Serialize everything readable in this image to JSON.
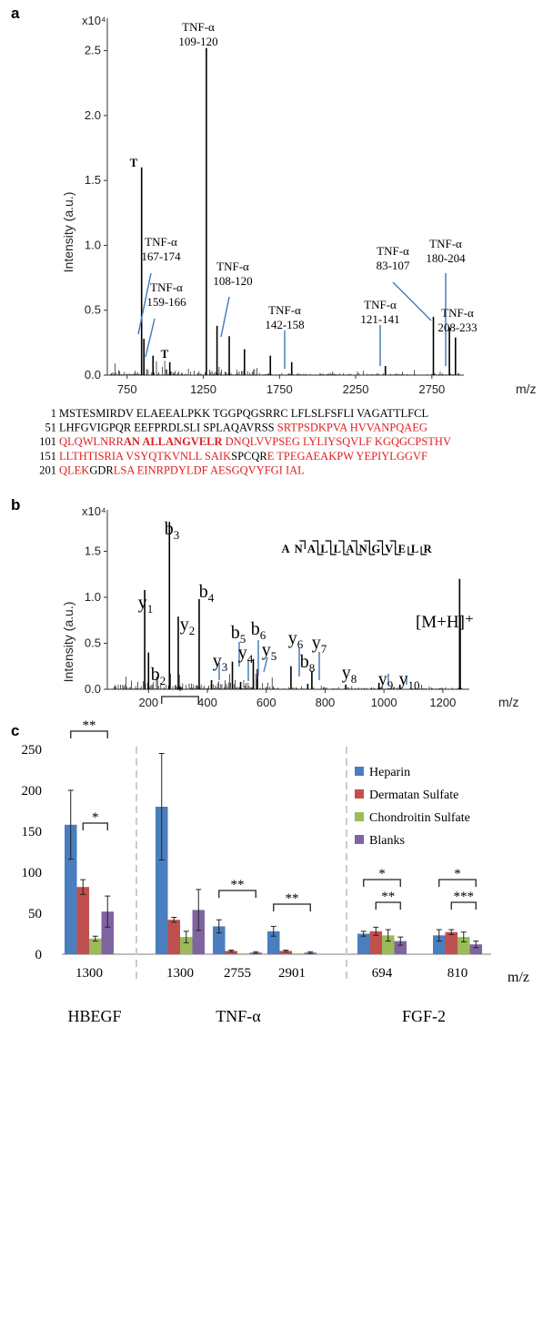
{
  "panels": {
    "a": "a",
    "b": "b",
    "c": "c"
  },
  "panel_a": {
    "ylabel": "Intensity (a.u.)",
    "exponent": "x10⁴",
    "xlabel": "m/z",
    "xticks": [
      "750",
      "1250",
      "1750",
      "2250",
      "2750"
    ],
    "yticks": [
      "0.0",
      "0.5",
      "1.0",
      "1.5",
      "2.0",
      "2.5"
    ],
    "annotations": [
      {
        "line1": "TNF-α",
        "line2": "109-120"
      },
      {
        "line1": "TNF-α",
        "line2": "167-174"
      },
      {
        "line1": "TNF-α",
        "line2": "159-166"
      },
      {
        "line1": "TNF-α",
        "line2": "108-120"
      },
      {
        "line1": "TNF-α",
        "line2": "142-158"
      },
      {
        "line1": "TNF-α",
        "line2": "121-141"
      },
      {
        "line1": "TNF-α",
        "line2": "83-107"
      },
      {
        "line1": "TNF-α",
        "line2": "180-204"
      },
      {
        "line1": "TNF-α",
        "line2": "208-233"
      }
    ],
    "trypsin_marks": [
      "T",
      "T"
    ]
  },
  "sequence": [
    {
      "num": "1",
      "segs": [
        {
          "t": "MSTESMIRDV ELAEEALPKK TGGPQGSRRC LFLSLFSFLI VAGATTLFCL",
          "c": "k"
        }
      ]
    },
    {
      "num": "51",
      "segs": [
        {
          "t": "LHFGVIGPQR EEFPRDLSLI SPLAQAVRSS ",
          "c": "k"
        },
        {
          "t": "SRTPSDKPVA HVVANPQAEG",
          "c": "r"
        }
      ]
    },
    {
      "num": "101",
      "segs": [
        {
          "t": "QLQWLNRR",
          "c": "r"
        },
        {
          "t": "AN ALLANGVELR",
          "c": "rb"
        },
        {
          "t": " DNQLVVPSEG LYLIYSQVLF KGQGCPSTHV",
          "c": "r"
        }
      ]
    },
    {
      "num": "151",
      "segs": [
        {
          "t": "LLTHTISRIA VSYQTKVNLL SAIK",
          "c": "r"
        },
        {
          "t": "SPCQR",
          "c": "k"
        },
        {
          "t": "E TPEGAEAKPW YEPIYLGGVF",
          "c": "r"
        }
      ]
    },
    {
      "num": "201",
      "segs": [
        {
          "t": "QLEK",
          "c": "r"
        },
        {
          "t": "GDR",
          "c": "k"
        },
        {
          "t": "LSA EINRPDYLDF AESGQVYFGI IAL",
          "c": "r"
        }
      ]
    }
  ],
  "panel_b": {
    "ylabel": "Intensity (a.u.)",
    "exponent": "x10⁴",
    "xlabel": "m/z",
    "xticks": [
      "200",
      "400",
      "600",
      "800",
      "1000",
      "1200"
    ],
    "yticks": [
      "0.0",
      "0.5",
      "1.0",
      "1.5"
    ],
    "peptide": "ANALLANGVELR",
    "precursor": "[M+H]⁺",
    "ions": [
      {
        "s": "y",
        "n": "1"
      },
      {
        "s": "b",
        "n": "2"
      },
      {
        "s": "b",
        "n": "3"
      },
      {
        "s": "y",
        "n": "2"
      },
      {
        "s": "b",
        "n": "4"
      },
      {
        "s": "y",
        "n": "3"
      },
      {
        "s": "b",
        "n": "5"
      },
      {
        "s": "y",
        "n": "4"
      },
      {
        "s": "b",
        "n": "6"
      },
      {
        "s": "y",
        "n": "5"
      },
      {
        "s": "y",
        "n": "6"
      },
      {
        "s": "y",
        "n": "7"
      },
      {
        "s": "b",
        "n": "8"
      },
      {
        "s": "y",
        "n": "8"
      },
      {
        "s": "y",
        "n": "9"
      },
      {
        "s": "y",
        "n": "10"
      }
    ]
  },
  "chart_data": [
    {
      "type": "line",
      "panel": "a",
      "xlabel": "m/z",
      "ylabel": "Intensity (a.u.)",
      "y_multiplier": "x10^4",
      "xlim": [
        620,
        2960
      ],
      "ylim": [
        0,
        2.75
      ],
      "peaks": [
        {
          "x": 845,
          "y": 1.6,
          "label": "T"
        },
        {
          "x": 860,
          "y": 0.28,
          "label": "TNF-α 167-174"
        },
        {
          "x": 920,
          "y": 0.15,
          "label": "TNF-α 159-166"
        },
        {
          "x": 1030,
          "y": 0.1,
          "label": "T"
        },
        {
          "x": 1270,
          "y": 2.52,
          "label": "TNF-α 109-120"
        },
        {
          "x": 1340,
          "y": 0.38
        },
        {
          "x": 1420,
          "y": 0.3,
          "label": "TNF-α 108-120"
        },
        {
          "x": 1520,
          "y": 0.2
        },
        {
          "x": 1690,
          "y": 0.15
        },
        {
          "x": 1830,
          "y": 0.1,
          "label": "TNF-α 142-158"
        },
        {
          "x": 2445,
          "y": 0.07,
          "label": "TNF-α 121-141"
        },
        {
          "x": 2760,
          "y": 0.45,
          "label": "TNF-α 83-107"
        },
        {
          "x": 2865,
          "y": 0.37,
          "label": "TNF-α 180-204"
        },
        {
          "x": 2905,
          "y": 0.29,
          "label": "TNF-α 208-233"
        }
      ]
    },
    {
      "type": "line",
      "panel": "b",
      "xlabel": "m/z",
      "ylabel": "Intensity (a.u.)",
      "y_multiplier": "x10^4",
      "xlim": [
        60,
        1290
      ],
      "ylim": [
        0,
        1.95
      ],
      "peaks": [
        {
          "x": 187,
          "y": 1.08,
          "label": "y1"
        },
        {
          "x": 200,
          "y": 0.4,
          "label": "b2"
        },
        {
          "x": 271,
          "y": 1.82,
          "label": "b3"
        },
        {
          "x": 301,
          "y": 0.79,
          "label": "y2"
        },
        {
          "x": 372,
          "y": 0.98,
          "label": "b4"
        },
        {
          "x": 414,
          "y": 0.1,
          "label": "y3"
        },
        {
          "x": 485,
          "y": 0.3,
          "label": "b5"
        },
        {
          "x": 513,
          "y": 0.08,
          "label": "y4"
        },
        {
          "x": 556,
          "y": 0.33,
          "label": "b6"
        },
        {
          "x": 570,
          "y": 0.22,
          "label": "y5"
        },
        {
          "x": 684,
          "y": 0.25,
          "label": "y6"
        },
        {
          "x": 741,
          "y": 0.06,
          "label": "b8"
        },
        {
          "x": 755,
          "y": 0.2,
          "label": "y7"
        },
        {
          "x": 870,
          "y": 0.05,
          "label": "y8"
        },
        {
          "x": 983,
          "y": 0.07,
          "label": "y9"
        },
        {
          "x": 1054,
          "y": 0.05,
          "label": "y10"
        },
        {
          "x": 1257,
          "y": 1.2,
          "label": "[M+H]+"
        }
      ]
    },
    {
      "type": "bar",
      "panel": "c",
      "xlabel": "m/z",
      "ylim": [
        0,
        250
      ],
      "yticks": [
        0,
        50,
        100,
        150,
        200,
        250
      ],
      "categories": [
        "1300",
        "1300",
        "2755",
        "2901",
        "694",
        "810"
      ],
      "groups": [
        {
          "label": "HBEGF",
          "categories": [
            0
          ]
        },
        {
          "label": "TNF-α",
          "categories": [
            1,
            2,
            3
          ]
        },
        {
          "label": "FGF-2",
          "categories": [
            4,
            5
          ]
        }
      ],
      "series": [
        {
          "name": "Heparin",
          "color": "#4a7ebf",
          "values": [
            158,
            180,
            34,
            28,
            25,
            23
          ],
          "errors": [
            42,
            65,
            8,
            6,
            3,
            7
          ]
        },
        {
          "name": "Dermatan Sulfate",
          "color": "#c0504d",
          "values": [
            82,
            42,
            4,
            4,
            28,
            27
          ],
          "errors": [
            9,
            3,
            1,
            1,
            5,
            3
          ]
        },
        {
          "name": "Chondroitin Sulfate",
          "color": "#9bbb59",
          "values": [
            19,
            21,
            1,
            1,
            23,
            21
          ],
          "errors": [
            3,
            7,
            0.5,
            0.5,
            7,
            6
          ]
        },
        {
          "name": "Blanks",
          "color": "#8064a2",
          "values": [
            52,
            54,
            2,
            2,
            16,
            12
          ],
          "errors": [
            19,
            25,
            1,
            1,
            5,
            4
          ]
        }
      ],
      "significance": [
        {
          "category": 0,
          "from": 0,
          "to": 3,
          "label": "**"
        },
        {
          "category": 0,
          "from": 1,
          "to": 3,
          "label": "*"
        },
        {
          "category": 1,
          "from": 0,
          "to": 3,
          "label": "*"
        },
        {
          "category": 2,
          "from": 0,
          "to": 3,
          "label": "**"
        },
        {
          "category": 3,
          "from": 0,
          "to": 3,
          "label": "**"
        },
        {
          "category": 4,
          "from": 0,
          "to": 3,
          "label": "*"
        },
        {
          "category": 4,
          "from": 1,
          "to": 3,
          "label": "**"
        },
        {
          "category": 5,
          "from": 0,
          "to": 3,
          "label": "*"
        },
        {
          "category": 5,
          "from": 1,
          "to": 3,
          "label": "***"
        }
      ],
      "legend_position": "top-right"
    }
  ]
}
